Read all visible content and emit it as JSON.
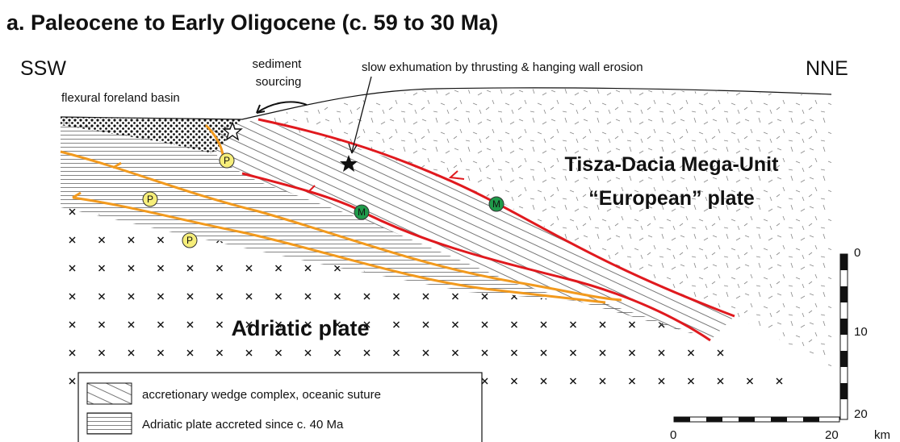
{
  "title": "a. Paleocene to Early Oligocene (c. 59 to 30 Ma)",
  "orientation": {
    "left": "SSW",
    "right": "NNE"
  },
  "labels": {
    "sediment_sourcing": [
      "sediment",
      "sourcing"
    ],
    "foreland_basin": "flexural foreland basin",
    "exhumation": "slow exhumation by thrusting & hanging wall erosion",
    "european": [
      "Tisza-Dacia Mega-Unit",
      "“European” plate"
    ],
    "adriatic": "Adriatic plate"
  },
  "markers": [
    {
      "label": "P"
    },
    {
      "label": "P"
    },
    {
      "label": "P"
    },
    {
      "label": "M"
    },
    {
      "label": "M"
    }
  ],
  "legend": [
    "accretionary wedge complex, oceanic suture",
    "Adriatic plate accreted since c. 40 Ma"
  ],
  "scale": {
    "vertical": [
      0,
      10,
      20
    ],
    "horizontal": [
      0,
      20
    ],
    "unit": "km"
  }
}
